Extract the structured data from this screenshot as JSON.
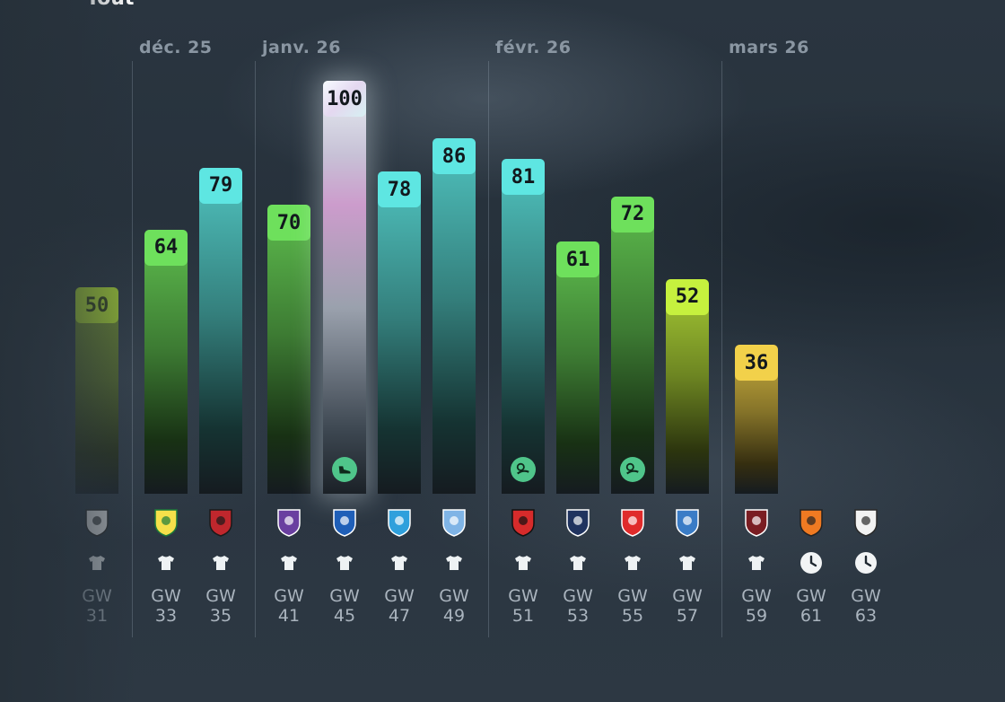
{
  "page_title": "Tout",
  "chart_data": {
    "type": "bar",
    "title": "Tout",
    "months": [
      {
        "label": "déc. 25",
        "starts_at_gw": "33"
      },
      {
        "label": "janv. 26",
        "starts_at_gw": "41"
      },
      {
        "label": "févr. 26",
        "starts_at_gw": "51"
      },
      {
        "label": "mars 26",
        "starts_at_gw": "59"
      }
    ],
    "ylim": [
      0,
      100
    ],
    "bars": [
      {
        "gw": "GW",
        "num": "31",
        "value": 50,
        "opponent": "Angers SCO",
        "color": "#a8d438",
        "status": "shirt",
        "icon": null,
        "faded": true
      },
      {
        "gw": "GW",
        "num": "33",
        "value": 64,
        "opponent": "FC Nantes",
        "color": "#6ee05c",
        "status": "shirt",
        "icon": null
      },
      {
        "gw": "GW",
        "num": "35",
        "value": 79,
        "opponent": "OGC Nice",
        "color": "#5ee6e2",
        "status": "shirt",
        "icon": null
      },
      {
        "gw": "GW",
        "num": "41",
        "value": 70,
        "opponent": "Toulouse FC",
        "color": "#6ee05c",
        "status": "shirt",
        "icon": null
      },
      {
        "gw": "GW",
        "num": "45",
        "value": 100,
        "opponent": "AJ Auxerre",
        "color": "#e6eef0",
        "status": "shirt",
        "icon": "boot-icon"
      },
      {
        "gw": "GW",
        "num": "47",
        "value": 78,
        "opponent": "Olympique de Marseille",
        "color": "#5ee6e2",
        "status": "shirt",
        "icon": null
      },
      {
        "gw": "GW",
        "num": "49",
        "value": 86,
        "opponent": "Le Havre AC",
        "color": "#5ee6e2",
        "status": "shirt",
        "icon": null
      },
      {
        "gw": "GW",
        "num": "51",
        "value": 81,
        "opponent": "Stade Rennais",
        "color": "#5ee6e2",
        "status": "shirt",
        "icon": "ball-icon"
      },
      {
        "gw": "GW",
        "num": "53",
        "value": 61,
        "opponent": "Paris FC",
        "color": "#6ee05c",
        "status": "shirt",
        "icon": null
      },
      {
        "gw": "GW",
        "num": "55",
        "value": 72,
        "opponent": "AS Monaco",
        "color": "#6ee05c",
        "status": "shirt",
        "icon": "ball-icon"
      },
      {
        "gw": "GW",
        "num": "57",
        "value": 52,
        "opponent": "RC Strasbourg",
        "color": "#c6f13e",
        "status": "shirt",
        "icon": null
      },
      {
        "gw": "GW",
        "num": "59",
        "value": 36,
        "opponent": "FC Metz",
        "color": "#f2d14a",
        "status": "shirt",
        "icon": null
      },
      {
        "gw": "GW",
        "num": "61",
        "value": null,
        "opponent": "FC Lorient",
        "color": null,
        "status": "clock",
        "icon": null
      },
      {
        "gw": "GW",
        "num": "63",
        "value": null,
        "opponent": "Angers SCO",
        "color": null,
        "status": "clock",
        "icon": null
      }
    ]
  }
}
